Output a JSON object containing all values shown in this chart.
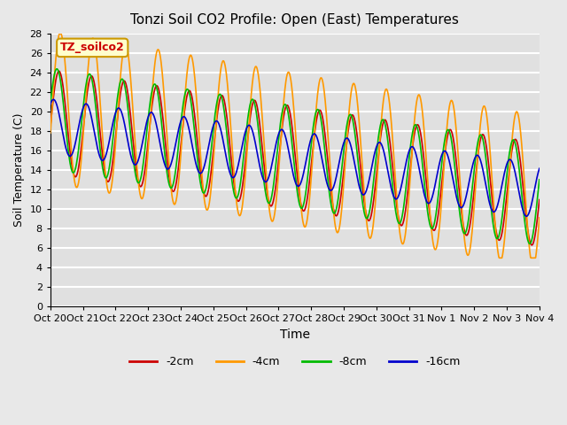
{
  "title": "Tonzi Soil CO2 Profile: Open (East) Temperatures",
  "xlabel": "Time",
  "ylabel": "Soil Temperature (C)",
  "legend_label": "TZ_soilco2",
  "series_labels": [
    "-2cm",
    "-4cm",
    "-8cm",
    "-16cm"
  ],
  "series_colors": [
    "#cc0000",
    "#ff9900",
    "#00bb00",
    "#0000cc"
  ],
  "ylim": [
    0,
    28
  ],
  "yticks": [
    0,
    2,
    4,
    6,
    8,
    10,
    12,
    14,
    16,
    18,
    20,
    22,
    24,
    26,
    28
  ],
  "x_tick_labels": [
    "Oct 20",
    "Oct 21",
    "Oct 22",
    "Oct 23",
    "Oct 24",
    "Oct 25",
    "Oct 26",
    "Oct 27",
    "Oct 28",
    "Oct 29",
    "Oct 30",
    "Oct 31",
    "Nov 1",
    "Nov 2",
    "Nov 3",
    "Nov 4"
  ],
  "n_days": 15,
  "bg_color": "#e0e0e0",
  "grid_color": "#ffffff",
  "legend_box_color": "#ffffcc",
  "legend_box_edge": "#cc9900"
}
